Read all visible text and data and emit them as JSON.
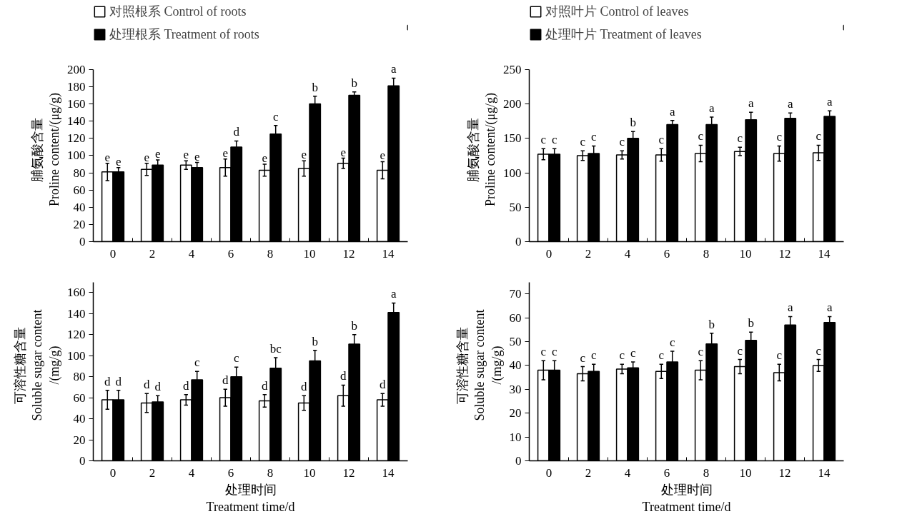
{
  "chart_data": [
    {
      "type": "bar",
      "categories": [
        "0",
        "2",
        "4",
        "6",
        "8",
        "10",
        "12",
        "14"
      ],
      "ylabel": "脯氨酸含量\nProline content/(μg/g)",
      "ylim": [
        0,
        200
      ],
      "yticks": [
        0,
        20,
        40,
        60,
        80,
        100,
        120,
        140,
        160,
        180,
        200
      ],
      "legend": "top",
      "grid": false,
      "series": [
        {
          "name": "对照根系 Control of roots",
          "color": "#ffffff",
          "values": [
            81,
            84,
            89,
            86,
            83,
            85,
            91,
            83
          ],
          "errors": [
            10,
            7,
            5,
            10,
            7,
            9,
            6,
            10
          ],
          "value_labels": [
            "e",
            "e",
            "e",
            "e",
            "e",
            "e",
            "e",
            "e"
          ]
        },
        {
          "name": "处理根系 Treatment of roots",
          "color": "#000000",
          "values": [
            81,
            89,
            86,
            110,
            125,
            160,
            170,
            181
          ],
          "errors": [
            5,
            6,
            6,
            7,
            10,
            9,
            4,
            9
          ],
          "value_labels": [
            "e",
            "e",
            "e",
            "d",
            "c",
            "b",
            "b",
            "a"
          ]
        }
      ]
    },
    {
      "type": "bar",
      "categories": [
        "0",
        "2",
        "4",
        "6",
        "8",
        "10",
        "12",
        "14"
      ],
      "ylabel": "脯氨酸含量\nProline content/(μg/g)",
      "ylim": [
        0,
        250
      ],
      "yticks": [
        0,
        50,
        100,
        150,
        200,
        250
      ],
      "legend": "top",
      "grid": false,
      "series": [
        {
          "name": "对照叶片 Control of leaves",
          "color": "#ffffff",
          "values": [
            127,
            125,
            126,
            126,
            128,
            131,
            128,
            129
          ],
          "errors": [
            8,
            7,
            6,
            9,
            12,
            6,
            11,
            11
          ],
          "value_labels": [
            "c",
            "c",
            "c",
            "c",
            "c",
            "c",
            "c",
            "c"
          ]
        },
        {
          "name": "处理叶片 Treatment of leaves",
          "color": "#000000",
          "values": [
            127,
            128,
            150,
            170,
            170,
            177,
            179,
            182
          ],
          "errors": [
            8,
            11,
            10,
            6,
            11,
            11,
            8,
            8
          ],
          "value_labels": [
            "c",
            "c",
            "b",
            "a",
            "a",
            "a",
            "a",
            "a"
          ]
        }
      ]
    },
    {
      "type": "bar",
      "categories": [
        "0",
        "2",
        "4",
        "6",
        "8",
        "10",
        "12",
        "14"
      ],
      "xlabel": "处理时间\nTreatment time/d",
      "ylabel": "可溶性糖含量\nSoluble sugar content\n/(mg/g)",
      "ylim": [
        0,
        170
      ],
      "yticks": [
        0,
        20,
        40,
        60,
        80,
        100,
        120,
        140,
        160
      ],
      "grid": false,
      "series": [
        {
          "color": "#ffffff",
          "values": [
            58,
            55,
            58,
            60,
            57,
            55,
            62,
            58
          ],
          "errors": [
            9,
            9,
            5,
            8,
            6,
            7,
            10,
            6
          ],
          "value_labels": [
            "d",
            "d",
            "d",
            "d",
            "d",
            "d",
            "d",
            "d"
          ]
        },
        {
          "color": "#000000",
          "values": [
            58,
            56,
            77,
            80,
            88,
            95,
            111,
            141
          ],
          "errors": [
            9,
            6,
            8,
            9,
            10,
            10,
            9,
            9
          ],
          "value_labels": [
            "d",
            "d",
            "c",
            "c",
            "bc",
            "b",
            "b",
            "a"
          ]
        }
      ]
    },
    {
      "type": "bar",
      "categories": [
        "0",
        "2",
        "4",
        "6",
        "8",
        "10",
        "12",
        "14"
      ],
      "xlabel": "处理时间\nTreatment time/d",
      "ylabel": "可溶性糖含量\nSoluble sugar content\n/(mg/g)",
      "ylim": [
        0,
        75
      ],
      "yticks": [
        0,
        10,
        20,
        30,
        40,
        50,
        60,
        70
      ],
      "grid": false,
      "series": [
        {
          "color": "#ffffff",
          "values": [
            38,
            36.5,
            38.5,
            37.5,
            38,
            39.5,
            37,
            40
          ],
          "errors": [
            4,
            3,
            2,
            3,
            4,
            3,
            3.5,
            2.5
          ],
          "value_labels": [
            "c",
            "c",
            "c",
            "c",
            "c",
            "c",
            "c",
            "c"
          ]
        },
        {
          "color": "#000000",
          "values": [
            38,
            37.5,
            39,
            41.5,
            49,
            50.5,
            57,
            58
          ],
          "errors": [
            4,
            3,
            2.5,
            4.5,
            4.5,
            3.5,
            3.5,
            2.5
          ],
          "value_labels": [
            "c",
            "c",
            "c",
            "c",
            "b",
            "b",
            "a",
            "a"
          ]
        }
      ]
    }
  ]
}
